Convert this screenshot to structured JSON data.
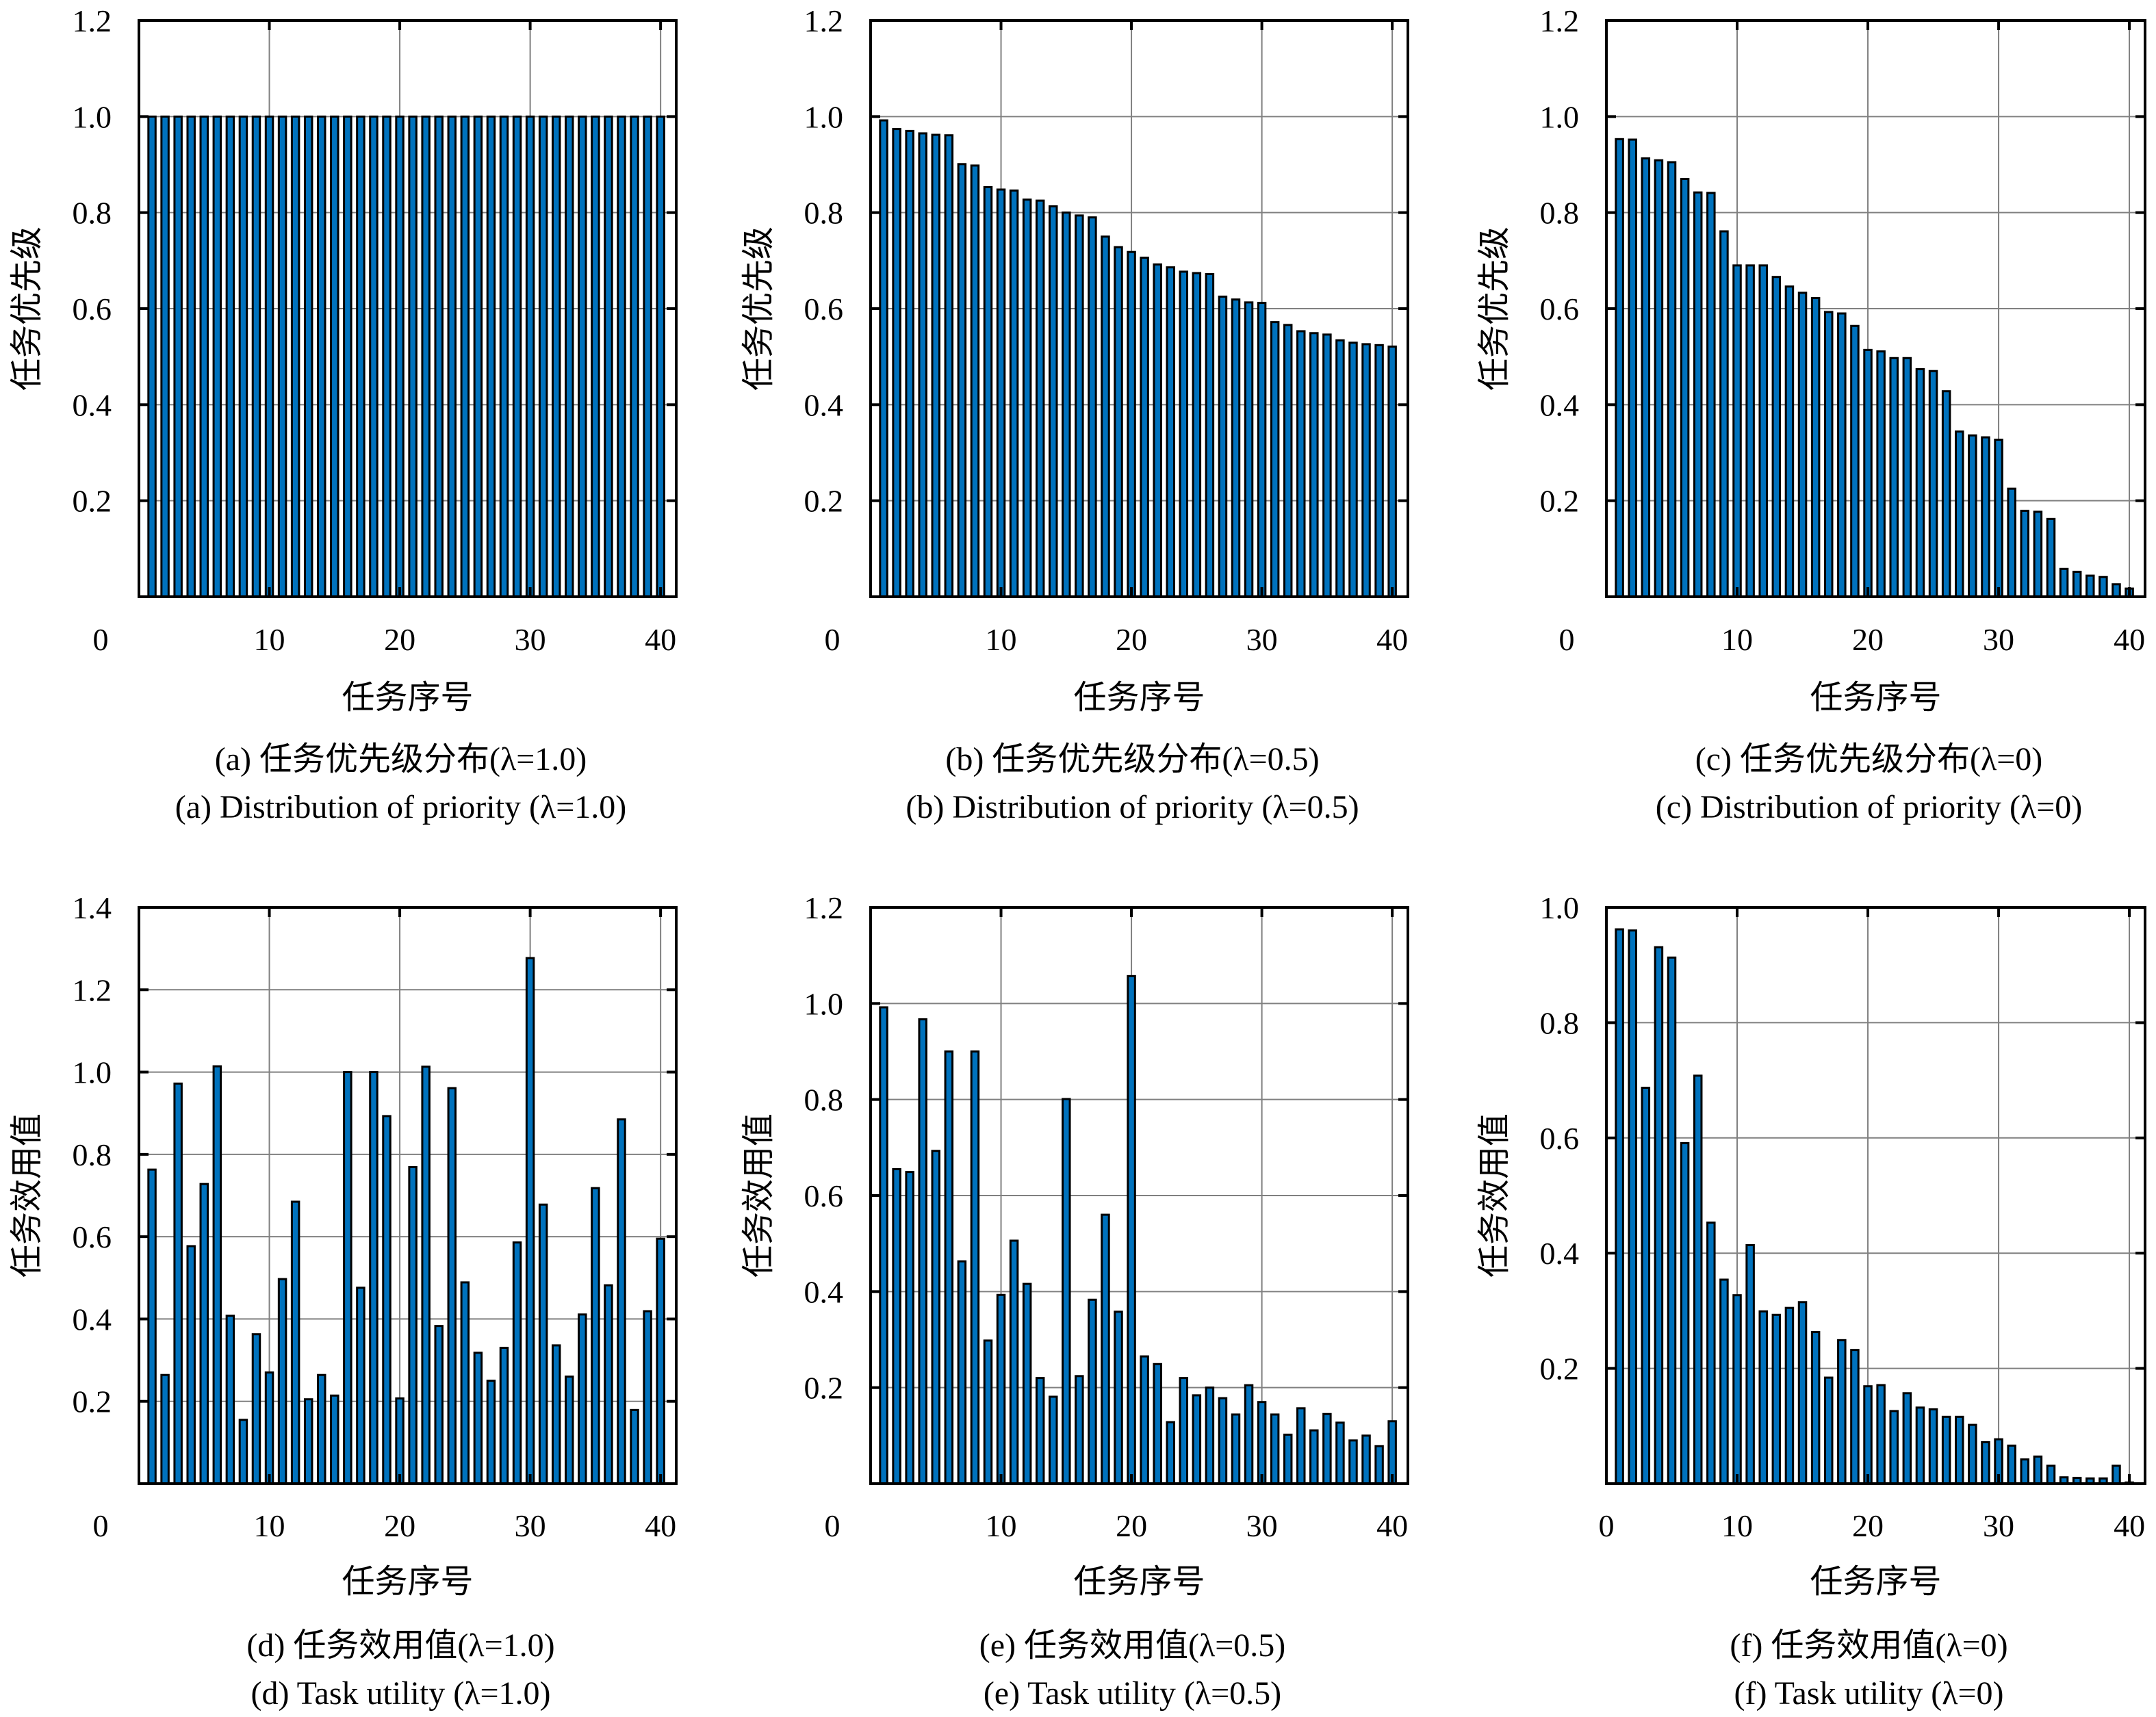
{
  "figure": {
    "bar_color": "#0072BD",
    "bar_edge_color": "#000000",
    "grid_color": "#808080"
  },
  "chart_data": [
    {
      "id": "a",
      "type": "bar",
      "xlabel": "任务序号",
      "ylabel": "任务优先级",
      "caption_zh": "(a) 任务优先级分布(λ=1.0)",
      "caption_en": "(a) Distribution of priority (λ=1.0)",
      "xlim": [
        0,
        41.2
      ],
      "ylim": [
        0,
        1.2
      ],
      "xticks": [
        10,
        20,
        30,
        40
      ],
      "yticks": [
        0.2,
        0.4,
        0.6,
        0.8,
        1.0,
        1.2
      ],
      "ytick_labels": [
        "0.2",
        "0.4",
        "0.6",
        "0.8",
        "1.0",
        "1.2"
      ],
      "origin_label": "0",
      "grid": true,
      "x": [
        1,
        2,
        3,
        4,
        5,
        6,
        7,
        8,
        9,
        10,
        11,
        12,
        13,
        14,
        15,
        16,
        17,
        18,
        19,
        20,
        21,
        22,
        23,
        24,
        25,
        26,
        27,
        28,
        29,
        30,
        31,
        32,
        33,
        34,
        35,
        36,
        37,
        38,
        39,
        40
      ],
      "values": [
        1.0,
        1.0,
        1.0,
        1.0,
        1.0,
        1.0,
        1.0,
        1.0,
        1.0,
        1.0,
        1.0,
        1.0,
        1.0,
        1.0,
        1.0,
        1.0,
        1.0,
        1.0,
        1.0,
        1.0,
        1.0,
        1.0,
        1.0,
        1.0,
        1.0,
        1.0,
        1.0,
        1.0,
        1.0,
        1.0,
        1.0,
        1.0,
        1.0,
        1.0,
        1.0,
        1.0,
        1.0,
        1.0,
        1.0,
        1.0
      ]
    },
    {
      "id": "b",
      "type": "bar",
      "xlabel": "任务序号",
      "ylabel": "任务优先级",
      "caption_zh": "(b) 任务优先级分布(λ=0.5)",
      "caption_en": "(b) Distribution of priority (λ=0.5)",
      "xlim": [
        0,
        41.2
      ],
      "ylim": [
        0,
        1.2
      ],
      "xticks": [
        10,
        20,
        30,
        40
      ],
      "yticks": [
        0.2,
        0.4,
        0.6,
        0.8,
        1.0,
        1.2
      ],
      "ytick_labels": [
        "0.2",
        "0.4",
        "0.6",
        "0.8",
        "1.0",
        "1.2"
      ],
      "origin_label": "0",
      "grid": true,
      "x": [
        1,
        2,
        3,
        4,
        5,
        6,
        7,
        8,
        9,
        10,
        11,
        12,
        13,
        14,
        15,
        16,
        17,
        18,
        19,
        20,
        21,
        22,
        23,
        24,
        25,
        26,
        27,
        28,
        29,
        30,
        31,
        32,
        33,
        34,
        35,
        36,
        37,
        38,
        39,
        40
      ],
      "values": [
        0.992,
        0.974,
        0.97,
        0.965,
        0.962,
        0.961,
        0.901,
        0.898,
        0.853,
        0.848,
        0.846,
        0.827,
        0.825,
        0.813,
        0.8,
        0.794,
        0.79,
        0.75,
        0.728,
        0.718,
        0.706,
        0.692,
        0.686,
        0.677,
        0.674,
        0.672,
        0.625,
        0.619,
        0.613,
        0.612,
        0.572,
        0.566,
        0.553,
        0.549,
        0.546,
        0.534,
        0.529,
        0.526,
        0.524,
        0.521
      ]
    },
    {
      "id": "c",
      "type": "bar",
      "xlabel": "任务序号",
      "ylabel": "任务优先级",
      "caption_zh": "(c) 任务优先级分布(λ=0)",
      "caption_en": "(c) Distribution of priority (λ=0)",
      "xlim": [
        0,
        41.2
      ],
      "ylim": [
        0,
        1.2
      ],
      "xticks": [
        10,
        20,
        30,
        40
      ],
      "yticks": [
        0.2,
        0.4,
        0.6,
        0.8,
        1.0,
        1.2
      ],
      "ytick_labels": [
        "0.2",
        "0.4",
        "0.6",
        "0.8",
        "1.0",
        "1.2"
      ],
      "origin_label": "0",
      "grid": true,
      "x": [
        1,
        2,
        3,
        4,
        5,
        6,
        7,
        8,
        9,
        10,
        11,
        12,
        13,
        14,
        15,
        16,
        17,
        18,
        19,
        20,
        21,
        22,
        23,
        24,
        25,
        26,
        27,
        28,
        29,
        30,
        31,
        32,
        33,
        34,
        35,
        36,
        37,
        38,
        39,
        40
      ],
      "values": [
        0.953,
        0.952,
        0.913,
        0.909,
        0.905,
        0.87,
        0.842,
        0.841,
        0.761,
        0.69,
        0.69,
        0.69,
        0.666,
        0.646,
        0.633,
        0.622,
        0.593,
        0.59,
        0.564,
        0.514,
        0.511,
        0.497,
        0.497,
        0.474,
        0.47,
        0.428,
        0.344,
        0.336,
        0.332,
        0.327,
        0.225,
        0.179,
        0.177,
        0.162,
        0.058,
        0.052,
        0.044,
        0.041,
        0.026,
        0.017
      ]
    },
    {
      "id": "d",
      "type": "bar",
      "xlabel": "任务序号",
      "ylabel": "任务效用值",
      "caption_zh": "(d) 任务效用值(λ=1.0)",
      "caption_en": "(d) Task utility (λ=1.0)",
      "xlim": [
        0,
        41.2
      ],
      "ylim": [
        0,
        1.4
      ],
      "xticks": [
        10,
        20,
        30,
        40
      ],
      "yticks": [
        0.2,
        0.4,
        0.6,
        0.8,
        1.0,
        1.2,
        1.4
      ],
      "ytick_labels": [
        "0.2",
        "0.4",
        "0.6",
        "0.8",
        "1.0",
        "1.2",
        "1.4"
      ],
      "origin_label": "0",
      "grid": true,
      "x": [
        1,
        2,
        3,
        4,
        5,
        6,
        7,
        8,
        9,
        10,
        11,
        12,
        13,
        14,
        15,
        16,
        17,
        18,
        19,
        20,
        21,
        22,
        23,
        24,
        25,
        26,
        27,
        28,
        29,
        30,
        31,
        32,
        33,
        34,
        35,
        36,
        37,
        38,
        39,
        40
      ],
      "values": [
        0.763,
        0.264,
        0.972,
        0.577,
        0.728,
        1.014,
        0.408,
        0.155,
        0.363,
        0.27,
        0.497,
        0.685,
        0.205,
        0.264,
        0.214,
        1.0,
        0.476,
        1.0,
        0.893,
        0.207,
        0.769,
        1.013,
        0.383,
        0.961,
        0.489,
        0.318,
        0.25,
        0.33,
        0.586,
        1.277,
        0.678,
        0.336,
        0.26,
        0.411,
        0.718,
        0.482,
        0.885,
        0.179,
        0.419,
        0.595
      ]
    },
    {
      "id": "e",
      "type": "bar",
      "xlabel": "任务序号",
      "ylabel": "任务效用值",
      "caption_zh": "(e) 任务效用值(λ=0.5)",
      "caption_en": "(e) Task utility (λ=0.5)",
      "xlim": [
        0,
        41.2
      ],
      "ylim": [
        0,
        1.2
      ],
      "xticks": [
        10,
        20,
        30,
        40
      ],
      "yticks": [
        0.2,
        0.4,
        0.6,
        0.8,
        1.0,
        1.2
      ],
      "ytick_labels": [
        "0.2",
        "0.4",
        "0.6",
        "0.8",
        "1.0",
        "1.2"
      ],
      "origin_label": "0",
      "grid": true,
      "x": [
        1,
        2,
        3,
        4,
        5,
        6,
        7,
        8,
        9,
        10,
        11,
        12,
        13,
        14,
        15,
        16,
        17,
        18,
        19,
        20,
        21,
        22,
        23,
        24,
        25,
        26,
        27,
        28,
        29,
        30,
        31,
        32,
        33,
        34,
        35,
        36,
        37,
        38,
        39,
        40
      ],
      "values": [
        0.992,
        0.655,
        0.649,
        0.967,
        0.693,
        0.9,
        0.463,
        0.9,
        0.298,
        0.393,
        0.506,
        0.416,
        0.22,
        0.181,
        0.801,
        0.224,
        0.383,
        0.56,
        0.358,
        1.057,
        0.265,
        0.249,
        0.128,
        0.22,
        0.184,
        0.2,
        0.178,
        0.144,
        0.205,
        0.17,
        0.144,
        0.102,
        0.157,
        0.111,
        0.145,
        0.127,
        0.09,
        0.1,
        0.078,
        0.13
      ]
    },
    {
      "id": "f",
      "type": "bar",
      "xlabel": "任务序号",
      "ylabel": "任务效用值",
      "caption_zh": "(f) 任务效用值(λ=0)",
      "caption_en": "(f) Task utility (λ=0)",
      "xlim": [
        0,
        41.2
      ],
      "ylim": [
        0,
        1.0
      ],
      "xticks": [
        0,
        10,
        20,
        30,
        40
      ],
      "yticks": [
        0.2,
        0.4,
        0.6,
        0.8,
        1.0
      ],
      "ytick_labels": [
        "0.2",
        "0.4",
        "0.6",
        "0.8",
        "1.0"
      ],
      "origin_label": "0",
      "grid": true,
      "x": [
        1,
        2,
        3,
        4,
        5,
        6,
        7,
        8,
        9,
        10,
        11,
        12,
        13,
        14,
        15,
        16,
        17,
        18,
        19,
        20,
        21,
        22,
        23,
        24,
        25,
        26,
        27,
        28,
        29,
        30,
        31,
        32,
        33,
        34,
        35,
        36,
        37,
        38,
        39,
        40
      ],
      "values": [
        0.962,
        0.96,
        0.687,
        0.931,
        0.913,
        0.591,
        0.708,
        0.453,
        0.354,
        0.327,
        0.414,
        0.299,
        0.293,
        0.305,
        0.315,
        0.263,
        0.184,
        0.249,
        0.232,
        0.169,
        0.171,
        0.126,
        0.157,
        0.132,
        0.129,
        0.116,
        0.116,
        0.102,
        0.072,
        0.077,
        0.066,
        0.042,
        0.047,
        0.031,
        0.011,
        0.01,
        0.009,
        0.009,
        0.031,
        0.002
      ]
    }
  ]
}
